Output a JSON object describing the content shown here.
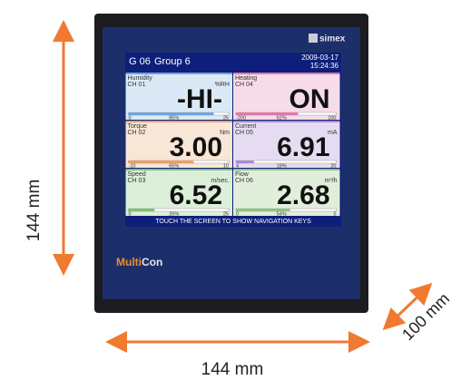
{
  "dimensions": {
    "height": "144 mm",
    "width": "144 mm",
    "depth": "100 mm"
  },
  "device": {
    "brand": "simex",
    "logo_first": "Multi",
    "logo_second": "Con"
  },
  "screen": {
    "group_id": "G 06",
    "group_name": "Group 6",
    "date": "2009-03-17",
    "time": "15:24:36",
    "footer": "TOUCH THE SCREEN TO SHOW NAVIGATION KEYS",
    "channels": [
      {
        "name": "Humidity",
        "channel": "CH 01",
        "unit": "%RH",
        "value": "-HI-",
        "min": "0",
        "max": "25",
        "bar": {
          "value": 85,
          "label": "85%"
        }
      },
      {
        "name": "Heating",
        "channel": "CH 04",
        "unit": "",
        "value": "ON",
        "min": "-200",
        "max": "100",
        "bar": {
          "value": 62,
          "label": "62%"
        }
      },
      {
        "name": "Torque",
        "channel": "CH 02",
        "unit": "Nm",
        "value": "3.00",
        "min": "-10",
        "max": "10",
        "bar": {
          "value": 65,
          "label": "65%"
        }
      },
      {
        "name": "Current",
        "channel": "CH 05",
        "unit": "mA",
        "value": "6.91",
        "min": "4",
        "max": "20",
        "bar": {
          "value": 18,
          "label": "18%"
        }
      },
      {
        "name": "Speed",
        "channel": "CH 03",
        "unit": "m/sec.",
        "value": "6.52",
        "min": "0",
        "max": "25",
        "bar": {
          "value": 26,
          "label": "26%"
        }
      },
      {
        "name": "Flow",
        "channel": "CH 06",
        "unit": "m³/h",
        "value": "2.68",
        "min": "0",
        "max": "5",
        "bar": {
          "value": 54,
          "label": "54%"
        }
      }
    ]
  }
}
